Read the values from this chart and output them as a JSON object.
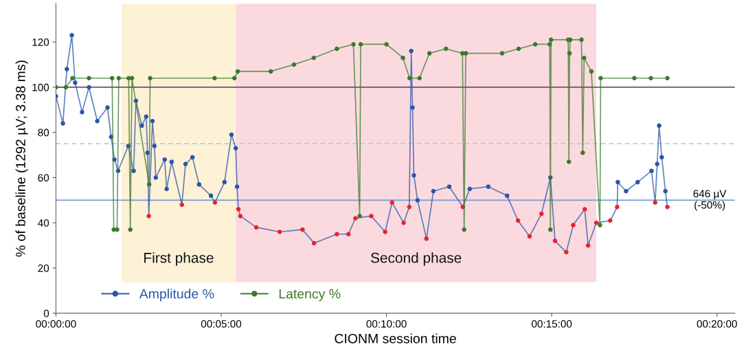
{
  "chart_data": {
    "type": "line",
    "xlabel": "CIONM session time",
    "ylabel": "% of baseline (1292 µV; 3.38 ms)",
    "xlim": [
      0,
      20.54
    ],
    "ylim": [
      0,
      137
    ],
    "xticks": [
      {
        "value": 0,
        "label": "00:00:00"
      },
      {
        "value": 5,
        "label": "00:05:00"
      },
      {
        "value": 10,
        "label": "00:10:00"
      },
      {
        "value": 15,
        "label": "00:15:00"
      },
      {
        "value": 20,
        "label": "00:20:00"
      }
    ],
    "yticks": [
      0,
      20,
      40,
      60,
      80,
      100,
      120
    ],
    "grid": false,
    "legend": "bottom left",
    "marker": "circle",
    "line_style": "solid",
    "bands": [
      {
        "axis": "x",
        "from": 1.98,
        "to": 5.44,
        "label": "First phase",
        "color": "#fdf1d6"
      },
      {
        "axis": "x",
        "from": 5.44,
        "to": 16.35,
        "label": "Second phase",
        "color": "#fadadf"
      }
    ],
    "ref_lines": [
      {
        "axis": "y",
        "value": 100,
        "label": null,
        "color": "#6e4f6c",
        "line_style": "solid"
      },
      {
        "axis": "y",
        "value": 75,
        "label": null,
        "color": "#a8d2e2",
        "line_style": "dashed"
      },
      {
        "axis": "y",
        "value": 50,
        "label": "646 µV\n(-50%)",
        "color": "#6f9fd4",
        "line_style": "solid"
      }
    ],
    "series": [
      {
        "name": "Amplitude %",
        "color": "#2a56a8",
        "x": [
          0,
          0.21,
          0.33,
          0.48,
          0.58,
          0.79,
          1.0,
          1.25,
          1.56,
          1.67,
          1.77,
          1.88,
          2.19,
          2.35,
          2.42,
          2.6,
          2.73,
          2.77,
          2.81,
          2.92,
          2.98,
          3.02,
          3.29,
          3.35,
          3.5,
          3.81,
          3.92,
          4.13,
          4.33,
          4.69,
          4.81,
          5.1,
          5.31,
          5.44,
          5.48,
          5.52,
          5.58,
          6.06,
          6.77,
          7.46,
          7.81,
          8.5,
          8.85,
          9.06,
          9.54,
          9.96,
          10.17,
          10.52,
          10.69,
          10.75,
          10.79,
          10.83,
          10.94,
          11.21,
          11.42,
          11.9,
          12.31,
          12.52,
          13.08,
          13.65,
          13.98,
          14.33,
          14.69,
          14.96,
          15.1,
          15.44,
          15.65,
          16.0,
          16.1,
          16.35,
          16.77,
          16.98,
          17.0,
          17.25,
          17.6,
          18.02,
          18.13,
          18.19,
          18.25,
          18.33,
          18.44,
          18.5
        ],
        "values": [
          96,
          84,
          108,
          123,
          102,
          89,
          100,
          85,
          91,
          78,
          68,
          63,
          74,
          63,
          94,
          83,
          87,
          71,
          43,
          85,
          74,
          60,
          68,
          55,
          67,
          48,
          66,
          69,
          57,
          52,
          49,
          58,
          79,
          73,
          56,
          46,
          43,
          38,
          36,
          37,
          31,
          35,
          35,
          42,
          43,
          36,
          49,
          40,
          47,
          116,
          91,
          61,
          50,
          33,
          54,
          56,
          47,
          55,
          56,
          52,
          41,
          34,
          44,
          60,
          32,
          27,
          39,
          46,
          30,
          40,
          41,
          47,
          58,
          54,
          58,
          63,
          49,
          66,
          83,
          69,
          54,
          47
        ],
        "colors": [
          "#2a56a8",
          "#2a56a8",
          "#2a56a8",
          "#2a56a8",
          "#2a56a8",
          "#2a56a8",
          "#2a56a8",
          "#2a56a8",
          "#2a56a8",
          "#2a56a8",
          "#2a56a8",
          "#2a56a8",
          "#2a56a8",
          "#2a56a8",
          "#2a56a8",
          "#2a56a8",
          "#2a56a8",
          "#2a56a8",
          "#e8232e",
          "#2a56a8",
          "#2a56a8",
          "#2a56a8",
          "#2a56a8",
          "#2a56a8",
          "#2a56a8",
          "#e8232e",
          "#2a56a8",
          "#2a56a8",
          "#2a56a8",
          "#2a56a8",
          "#e8232e",
          "#2a56a8",
          "#2a56a8",
          "#2a56a8",
          "#2a56a8",
          "#e8232e",
          "#e8232e",
          "#e8232e",
          "#e8232e",
          "#e8232e",
          "#e8232e",
          "#e8232e",
          "#e8232e",
          "#e8232e",
          "#e8232e",
          "#e8232e",
          "#e8232e",
          "#e8232e",
          "#e8232e",
          "#2a56a8",
          "#2a56a8",
          "#2a56a8",
          "#2a56a8",
          "#e8232e",
          "#2a56a8",
          "#2a56a8",
          "#e8232e",
          "#2a56a8",
          "#2a56a8",
          "#2a56a8",
          "#e8232e",
          "#e8232e",
          "#e8232e",
          "#2a56a8",
          "#e8232e",
          "#e8232e",
          "#e8232e",
          "#e8232e",
          "#e8232e",
          "#e8232e",
          "#e8232e",
          "#e8232e",
          "#2a56a8",
          "#2a56a8",
          "#2a56a8",
          "#2a56a8",
          "#e8232e",
          "#2a56a8",
          "#2a56a8",
          "#2a56a8",
          "#2a56a8",
          "#e8232e"
        ]
      },
      {
        "name": "Latency %",
        "color": "#3b7a2c",
        "x": [
          0,
          0.3,
          0.5,
          1.0,
          1.7,
          1.75,
          1.85,
          1.9,
          2.2,
          2.25,
          2.3,
          2.82,
          2.85,
          4.8,
          5.4,
          5.5,
          6.5,
          7.2,
          7.8,
          8.5,
          9.0,
          9.19,
          9.22,
          10.0,
          10.5,
          10.7,
          11.0,
          11.3,
          11.8,
          12.3,
          12.35,
          12.4,
          13.5,
          14.0,
          14.5,
          14.94,
          14.96,
          14.98,
          15.5,
          15.52,
          15.54,
          15.56,
          15.9,
          15.94,
          15.98,
          16.2,
          16.46,
          16.48,
          17.5,
          18.0,
          18.5
        ],
        "values": [
          100,
          100,
          104,
          104,
          104,
          37,
          37,
          104,
          104,
          37,
          104,
          57,
          104,
          104,
          104,
          107,
          107,
          110,
          113,
          117,
          119,
          43,
          119,
          119,
          113,
          104,
          104,
          115,
          117,
          115,
          37,
          115,
          115,
          117,
          119,
          119,
          37,
          121,
          121,
          67,
          115,
          121,
          121,
          71,
          113,
          107,
          39,
          104,
          104,
          104,
          104
        ]
      }
    ]
  }
}
